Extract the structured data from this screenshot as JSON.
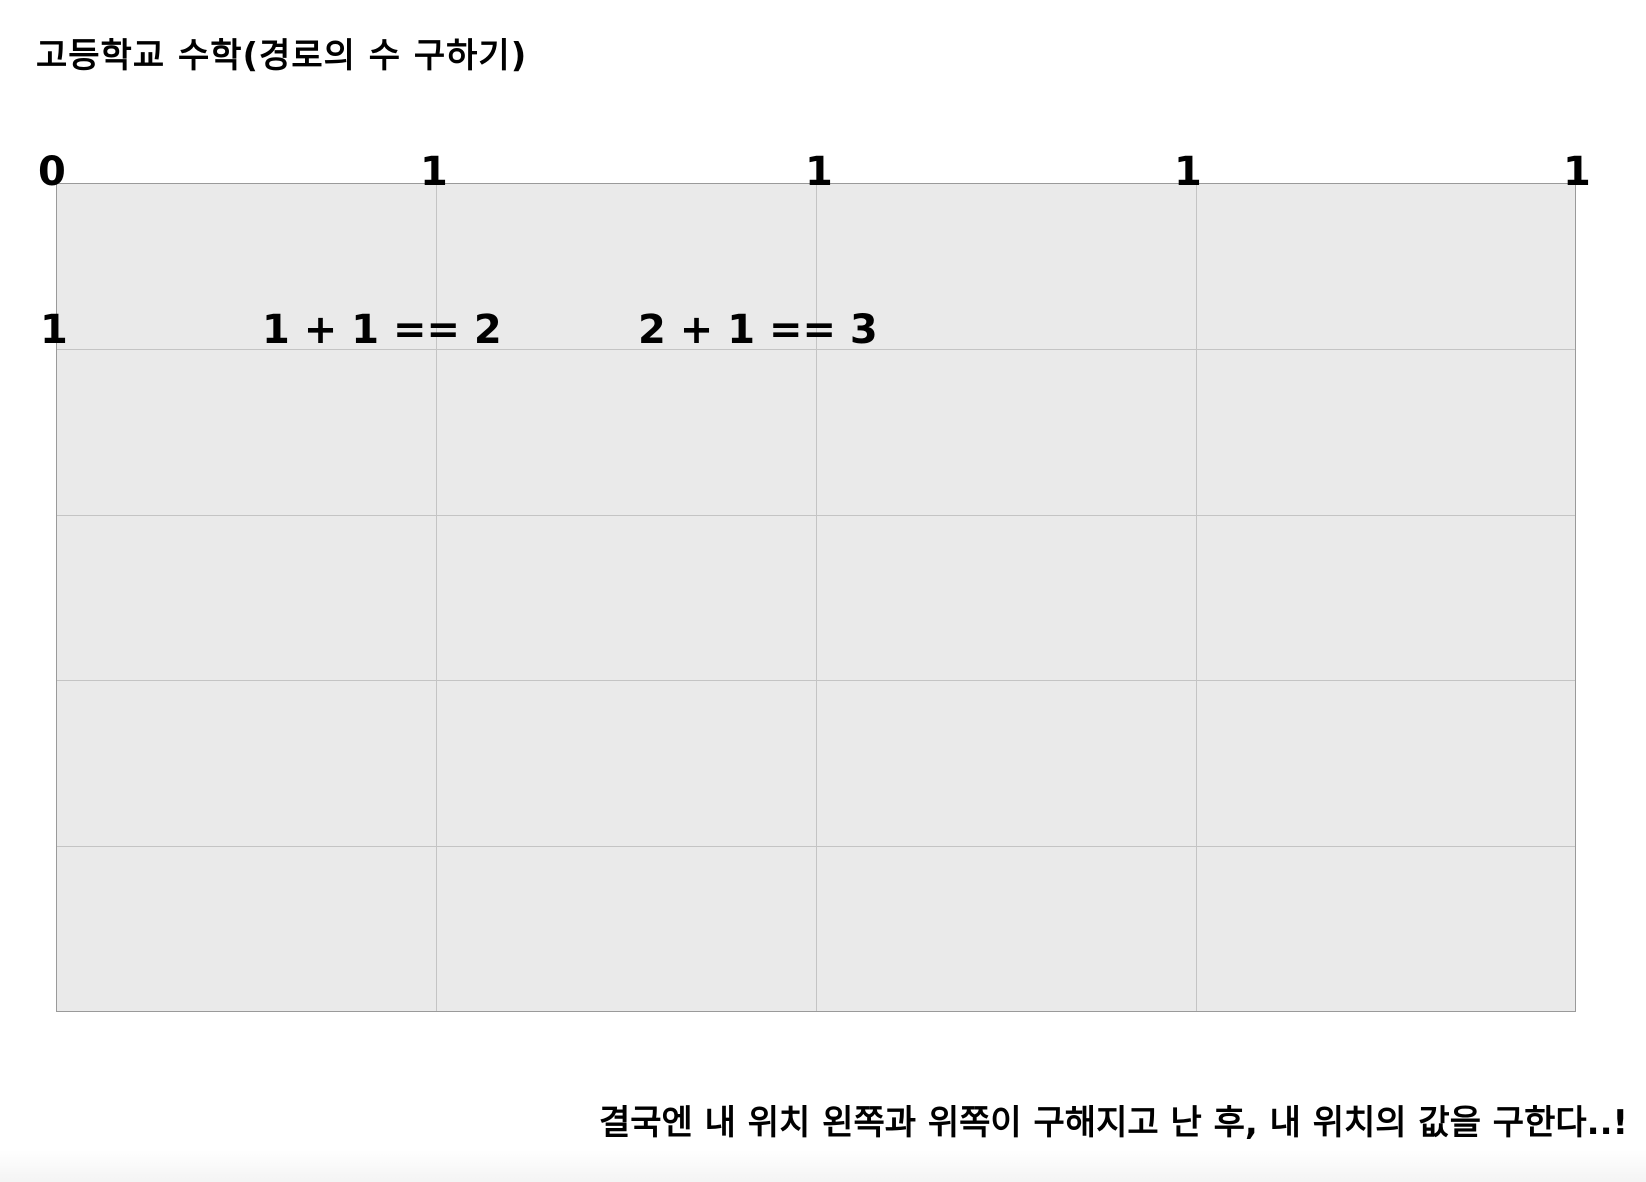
{
  "title": "고등학교 수학(경로의 수 구하기)",
  "grid": {
    "columns": 4,
    "rows": 5
  },
  "labels": {
    "corner": "0",
    "top": [
      "1",
      "1",
      "1",
      "1"
    ],
    "left": [
      "1"
    ],
    "row1": [
      "1 + 1 == 2",
      "2 + 1 == 3"
    ]
  },
  "footer": "결국엔 내 위치 왼쪽과 위쪽이 구해지고 난 후, 내 위치의 값을 구한다..!",
  "colors": {
    "grid_fill": "#eaeaea",
    "grid_line": "#c4c4c4",
    "border": "#9a9a9a",
    "text": "#000000"
  }
}
